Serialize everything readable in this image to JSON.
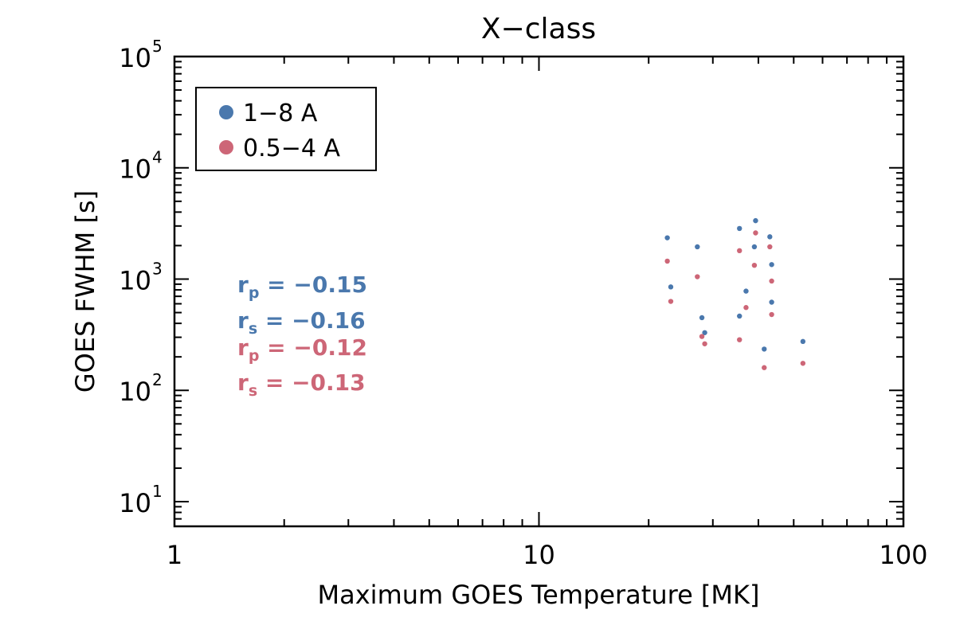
{
  "chart_data": {
    "type": "scatter",
    "title": "X−class",
    "xlabel": "Maximum GOES Temperature [MK]",
    "ylabel": "GOES FWHM [s]",
    "xscale": "log",
    "yscale": "log",
    "xlim": [
      1,
      100
    ],
    "ylim": [
      6,
      100000
    ],
    "x_tick_labels": [
      {
        "value": 1,
        "label": "1"
      },
      {
        "value": 10,
        "label": "10"
      },
      {
        "value": 100,
        "label": "100"
      }
    ],
    "y_tick_labels": [
      {
        "value": 10,
        "base": "10",
        "exp": "1"
      },
      {
        "value": 100,
        "base": "10",
        "exp": "2"
      },
      {
        "value": 1000,
        "base": "10",
        "exp": "3"
      },
      {
        "value": 10000,
        "base": "10",
        "exp": "4"
      },
      {
        "value": 100000,
        "base": "10",
        "exp": "5"
      }
    ],
    "legend": {
      "position": "top-left",
      "entries": [
        {
          "label": "1−8 A",
          "color": "#4a78ad"
        },
        {
          "label": "0.5−4 A",
          "color": "#cd6677"
        }
      ]
    },
    "annotations": [
      {
        "var": "r",
        "sub": "p",
        "text": " = −0.15",
        "color": "#4a78ad"
      },
      {
        "var": "r",
        "sub": "s",
        "text": " = −0.16",
        "color": "#4a78ad"
      },
      {
        "var": "r",
        "sub": "p",
        "text": " = −0.12",
        "color": "#cd6677"
      },
      {
        "var": "r",
        "sub": "s",
        "text": " = −0.13",
        "color": "#cd6677"
      }
    ],
    "series": [
      {
        "name": "1−8 A",
        "color": "#4a78ad",
        "points": [
          [
            22.5,
            2350
          ],
          [
            23,
            850
          ],
          [
            27.2,
            1950
          ],
          [
            28,
            450
          ],
          [
            28.5,
            330
          ],
          [
            35.5,
            2850
          ],
          [
            35.5,
            465
          ],
          [
            37,
            780
          ],
          [
            39,
            1950
          ],
          [
            39.3,
            3350
          ],
          [
            41.5,
            235
          ],
          [
            43,
            2400
          ],
          [
            43.5,
            1350
          ],
          [
            43.5,
            620
          ],
          [
            53,
            275
          ]
        ]
      },
      {
        "name": "0.5−4 A",
        "color": "#cd6677",
        "points": [
          [
            22.5,
            1450
          ],
          [
            23,
            630
          ],
          [
            27.2,
            1050
          ],
          [
            28,
            305
          ],
          [
            28.5,
            262
          ],
          [
            35.5,
            1800
          ],
          [
            35.5,
            285
          ],
          [
            37,
            555
          ],
          [
            39,
            1330
          ],
          [
            39.3,
            2600
          ],
          [
            41.5,
            160
          ],
          [
            43,
            1950
          ],
          [
            43.5,
            960
          ],
          [
            43.5,
            480
          ],
          [
            53,
            175
          ]
        ]
      }
    ]
  }
}
